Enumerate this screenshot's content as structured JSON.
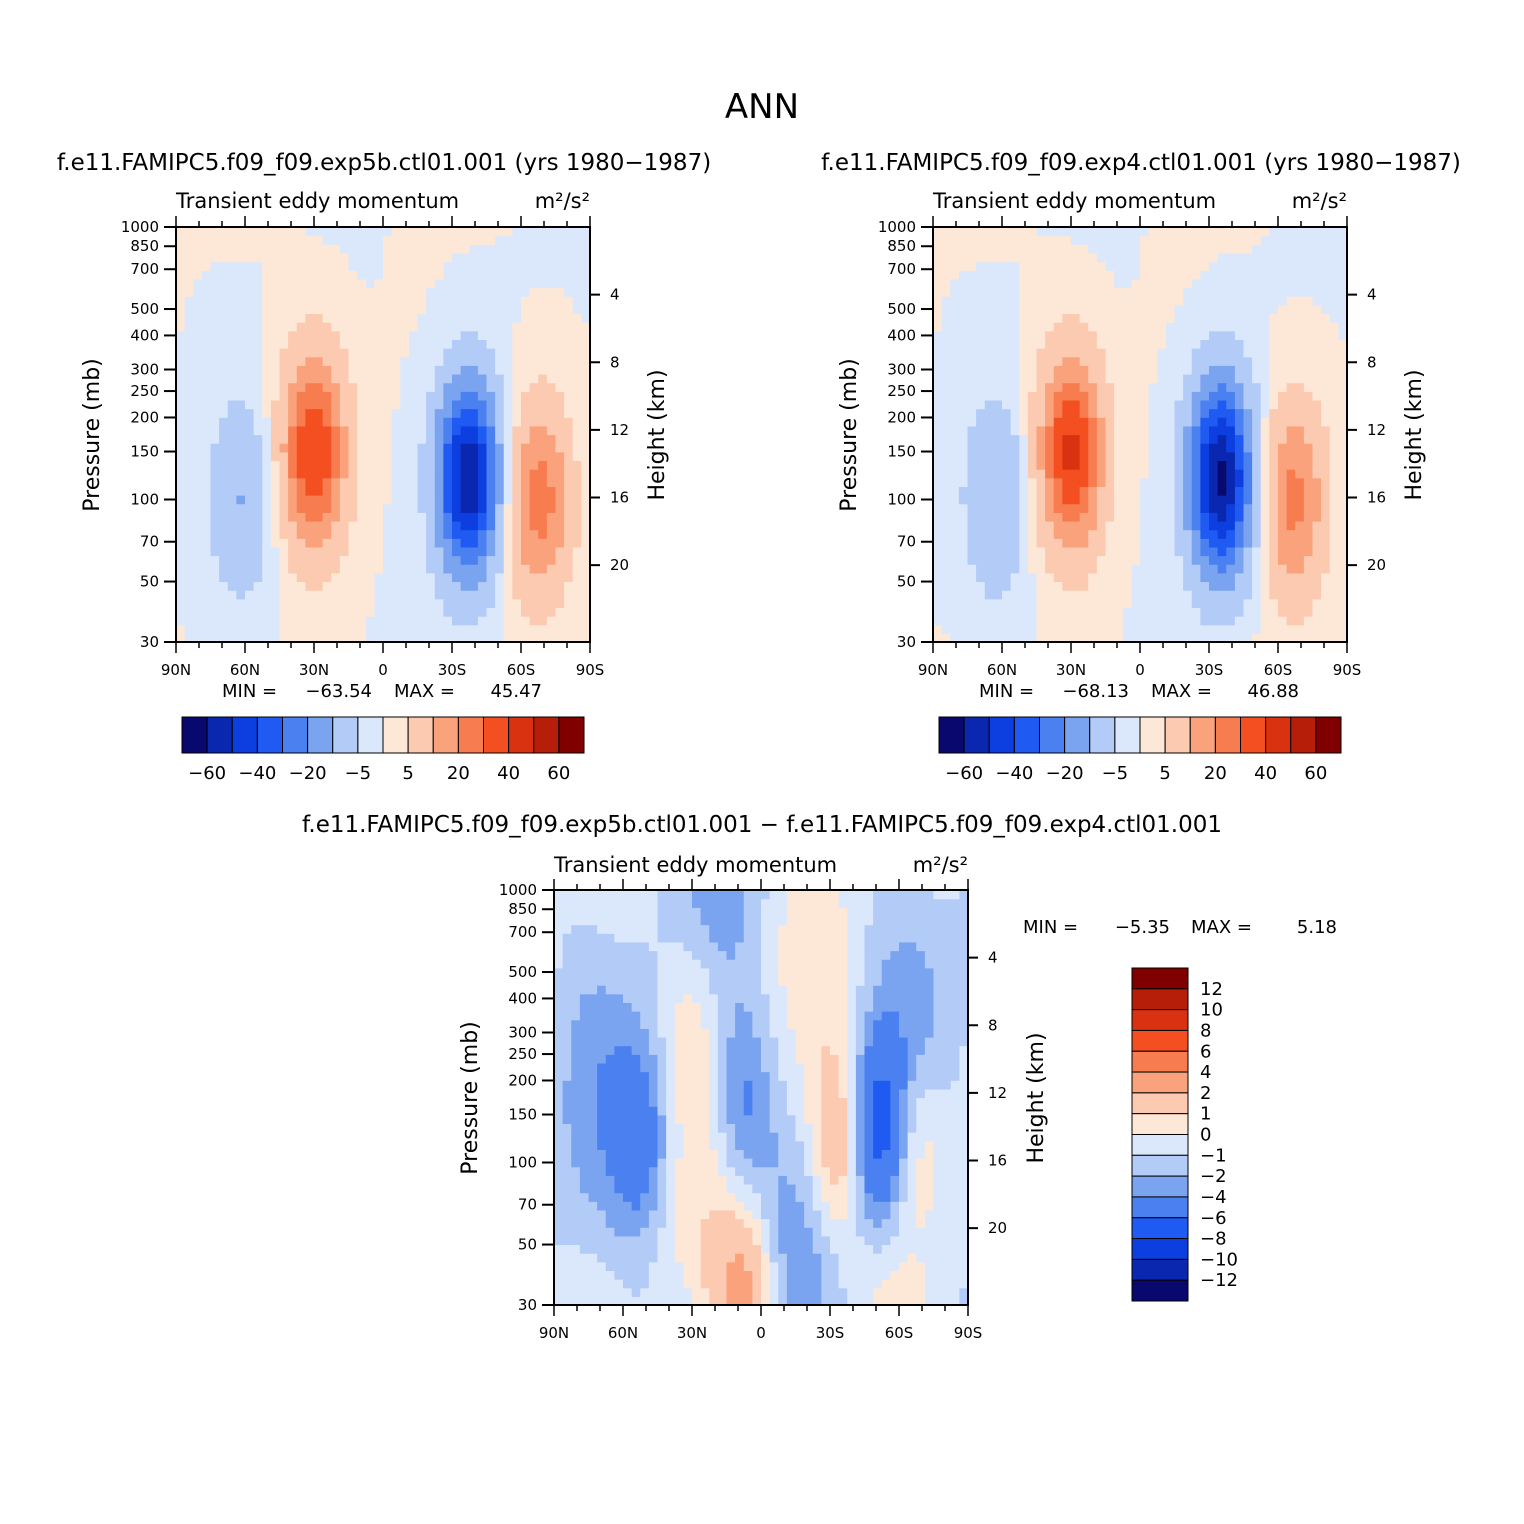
{
  "figure_title": "ANN",
  "colors": {
    "palette": [
      "#08086e",
      "#0a27b0",
      "#0d3ee0",
      "#1f5af2",
      "#4a80f0",
      "#7aa4f0",
      "#b3cbf7",
      "#dbe8fb",
      "#fde8d8",
      "#fccab0",
      "#f9a27c",
      "#f77c4f",
      "#f44f20",
      "#d93210",
      "#b71e0a",
      "#800000"
    ]
  },
  "chart_data": [
    {
      "type": "heatmap",
      "run_title": "f.e11.FAMIPC5.f09_f09.exp5b.ctl01.001 (yrs 1980−1987)",
      "left_title": "Transient eddy momentum",
      "units_title": "m²/s²",
      "ylabel": "Pressure (mb)",
      "ylabel_right": "Height (km)",
      "x_ticks": [
        "90N",
        "60N",
        "30N",
        "0",
        "30S",
        "60S",
        "90S"
      ],
      "y_ticks": [
        "30",
        "50",
        "70",
        "100",
        "150",
        "200",
        "250",
        "300",
        "400",
        "500",
        "700",
        "850",
        "1000"
      ],
      "y_ticks_right": [
        "20",
        "16",
        "12",
        "8",
        "4"
      ],
      "ylim": [
        1000,
        30
      ],
      "y_scale": "log",
      "min_label": "MIN =",
      "min_value": "−63.54",
      "max_label": "MAX =",
      "max_value": "45.47",
      "colorbar_orientation": "horizontal",
      "colorbar_labels": [
        "−60",
        "−40",
        "−20",
        "−5",
        "5",
        "20",
        "40",
        "60"
      ],
      "features": [
        {
          "lat": -37,
          "p": 250,
          "value": -63.54
        },
        {
          "lat": 30,
          "p": 200,
          "value": 45.47
        },
        {
          "lat": -68,
          "p": 300,
          "value": 30
        },
        {
          "lat": 62,
          "p": 300,
          "value": -15
        }
      ]
    },
    {
      "type": "heatmap",
      "run_title": "f.e11.FAMIPC5.f09_f09.exp4.ctl01.001 (yrs 1980−1987)",
      "left_title": "Transient eddy momentum",
      "units_title": "m²/s²",
      "ylabel": "Pressure (mb)",
      "ylabel_right": "Height (km)",
      "x_ticks": [
        "90N",
        "60N",
        "30N",
        "0",
        "30S",
        "60S",
        "90S"
      ],
      "y_ticks": [
        "30",
        "50",
        "70",
        "100",
        "150",
        "200",
        "250",
        "300",
        "400",
        "500",
        "700",
        "850",
        "1000"
      ],
      "y_ticks_right": [
        "20",
        "16",
        "12",
        "8",
        "4"
      ],
      "ylim": [
        1000,
        30
      ],
      "y_scale": "log",
      "min_label": "MIN =",
      "min_value": "−68.13",
      "max_label": "MAX =",
      "max_value": "46.88",
      "colorbar_orientation": "horizontal",
      "colorbar_labels": [
        "−60",
        "−40",
        "−20",
        "−5",
        "5",
        "20",
        "40",
        "60"
      ],
      "features": [
        {
          "lat": -35,
          "p": 250,
          "value": -68.13
        },
        {
          "lat": 30,
          "p": 200,
          "value": 46.88
        },
        {
          "lat": -67,
          "p": 300,
          "value": 28
        },
        {
          "lat": 63,
          "p": 300,
          "value": -15
        }
      ]
    },
    {
      "type": "heatmap",
      "run_title": "f.e11.FAMIPC5.f09_f09.exp5b.ctl01.001 − f.e11.FAMIPC5.f09_f09.exp4.ctl01.001",
      "left_title": "Transient eddy momentum",
      "units_title": "m²/s²",
      "ylabel": "Pressure (mb)",
      "ylabel_right": "Height (km)",
      "x_ticks": [
        "90N",
        "60N",
        "30N",
        "0",
        "30S",
        "60S",
        "90S"
      ],
      "y_ticks": [
        "30",
        "50",
        "70",
        "100",
        "150",
        "200",
        "250",
        "300",
        "400",
        "500",
        "700",
        "850",
        "1000"
      ],
      "y_ticks_right": [
        "20",
        "16",
        "12",
        "8",
        "4"
      ],
      "ylim": [
        1000,
        30
      ],
      "y_scale": "log",
      "min_label": "MIN =",
      "min_value": "−5.35",
      "max_label": "MAX =",
      "max_value": "5.18",
      "colorbar_orientation": "vertical",
      "colorbar_labels": [
        "12",
        "10",
        "8",
        "6",
        "4",
        "2",
        "1",
        "0",
        "−1",
        "−2",
        "−4",
        "−6",
        "−8",
        "−10",
        "−12"
      ],
      "features": [
        {
          "lat": 52,
          "p": 250,
          "value": -3
        },
        {
          "lat": 8,
          "p": 180,
          "value": -2.5
        },
        {
          "lat": -35,
          "p": 250,
          "value": 4
        },
        {
          "lat": -50,
          "p": 230,
          "value": -5.35
        },
        {
          "lat": -68,
          "p": 250,
          "value": 2.5
        },
        {
          "lat": 8,
          "p": 1000,
          "value": 5.18
        },
        {
          "lat": 30,
          "p": 90,
          "value": 1.5
        }
      ]
    }
  ]
}
